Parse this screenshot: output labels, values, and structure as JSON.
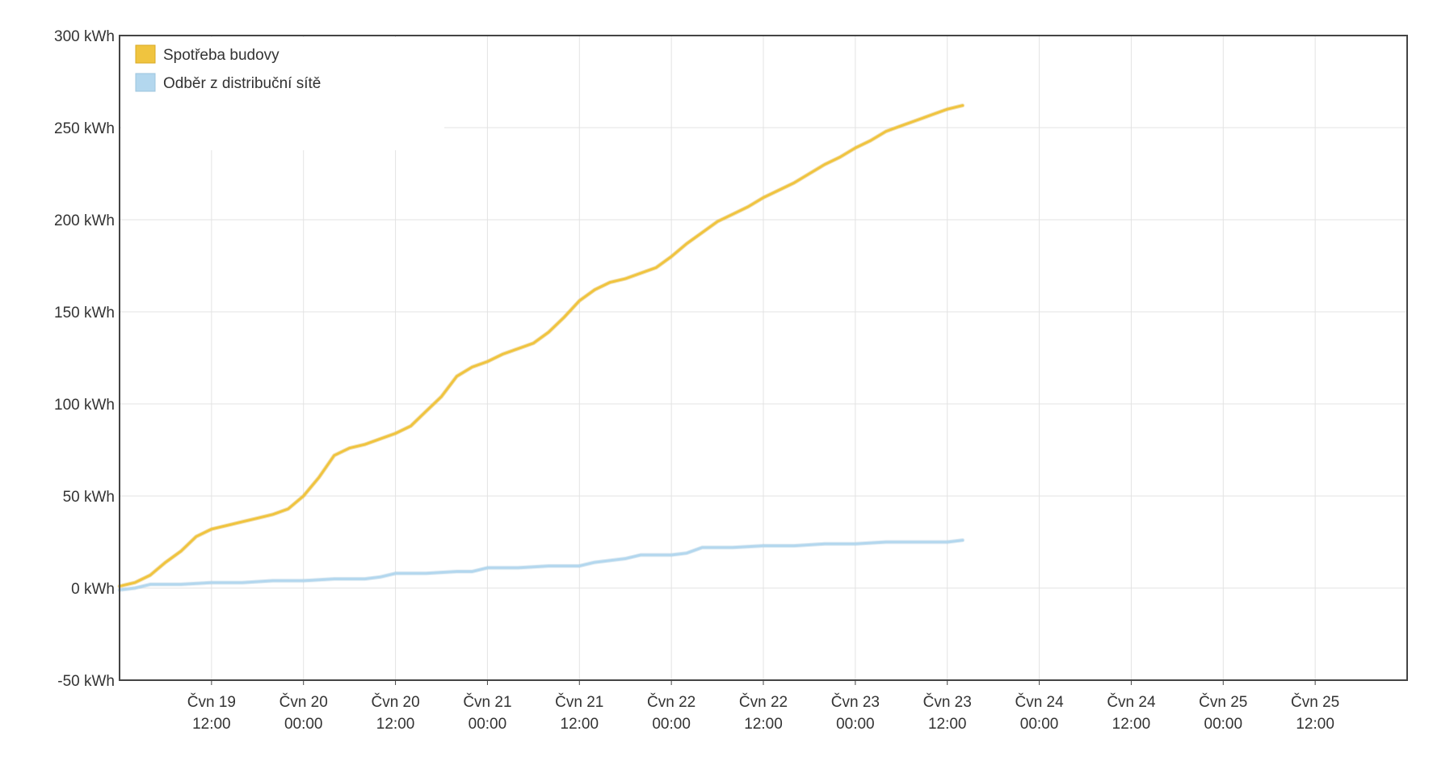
{
  "chart_data": {
    "type": "line",
    "title": "",
    "xlabel": "",
    "ylabel": "",
    "ylim": [
      -50,
      300
    ],
    "yticks": [
      {
        "value": -50,
        "label": "-50 kWh"
      },
      {
        "value": 0,
        "label": "0 kWh"
      },
      {
        "value": 50,
        "label": "50 kWh"
      },
      {
        "value": 100,
        "label": "100 kWh"
      },
      {
        "value": 150,
        "label": "150 kWh"
      },
      {
        "value": 200,
        "label": "200 kWh"
      },
      {
        "value": 250,
        "label": "250 kWh"
      },
      {
        "value": 300,
        "label": "300 kWh"
      }
    ],
    "x_unit": "hours",
    "xlim": [
      0,
      168
    ],
    "xticks": [
      {
        "value": 12,
        "line1": "Čvn 19",
        "line2": "12:00"
      },
      {
        "value": 24,
        "line1": "Čvn 20",
        "line2": "00:00"
      },
      {
        "value": 36,
        "line1": "Čvn 20",
        "line2": "12:00"
      },
      {
        "value": 48,
        "line1": "Čvn 21",
        "line2": "00:00"
      },
      {
        "value": 60,
        "line1": "Čvn 21",
        "line2": "12:00"
      },
      {
        "value": 72,
        "line1": "Čvn 22",
        "line2": "00:00"
      },
      {
        "value": 84,
        "line1": "Čvn 22",
        "line2": "12:00"
      },
      {
        "value": 96,
        "line1": "Čvn 23",
        "line2": "00:00"
      },
      {
        "value": 108,
        "line1": "Čvn 23",
        "line2": "12:00"
      },
      {
        "value": 120,
        "line1": "Čvn 24",
        "line2": "00:00"
      },
      {
        "value": 132,
        "line1": "Čvn 24",
        "line2": "12:00"
      },
      {
        "value": 144,
        "line1": "Čvn 25",
        "line2": "00:00"
      },
      {
        "value": 156,
        "line1": "Čvn 25",
        "line2": "12:00"
      }
    ],
    "grid": true,
    "legend_position": "top-left",
    "series": [
      {
        "name": "Spotřeba budovy",
        "color": "#f0c43f",
        "points": [
          [
            0,
            1
          ],
          [
            2,
            3
          ],
          [
            4,
            7
          ],
          [
            6,
            14
          ],
          [
            8,
            20
          ],
          [
            10,
            28
          ],
          [
            12,
            32
          ],
          [
            14,
            34
          ],
          [
            16,
            36
          ],
          [
            18,
            38
          ],
          [
            20,
            40
          ],
          [
            22,
            43
          ],
          [
            24,
            50
          ],
          [
            26,
            60
          ],
          [
            28,
            72
          ],
          [
            30,
            76
          ],
          [
            32,
            78
          ],
          [
            34,
            81
          ],
          [
            36,
            84
          ],
          [
            38,
            88
          ],
          [
            40,
            96
          ],
          [
            42,
            104
          ],
          [
            44,
            115
          ],
          [
            46,
            120
          ],
          [
            48,
            123
          ],
          [
            50,
            127
          ],
          [
            52,
            130
          ],
          [
            54,
            133
          ],
          [
            56,
            139
          ],
          [
            58,
            147
          ],
          [
            60,
            156
          ],
          [
            62,
            162
          ],
          [
            64,
            166
          ],
          [
            66,
            168
          ],
          [
            68,
            171
          ],
          [
            70,
            174
          ],
          [
            72,
            180
          ],
          [
            74,
            187
          ],
          [
            76,
            193
          ],
          [
            78,
            199
          ],
          [
            80,
            203
          ],
          [
            82,
            207
          ],
          [
            84,
            212
          ],
          [
            86,
            216
          ],
          [
            88,
            220
          ],
          [
            90,
            225
          ],
          [
            92,
            230
          ],
          [
            94,
            234
          ],
          [
            96,
            239
          ],
          [
            98,
            243
          ],
          [
            100,
            248
          ],
          [
            102,
            251
          ],
          [
            104,
            254
          ],
          [
            106,
            257
          ],
          [
            108,
            260
          ],
          [
            110,
            262
          ]
        ]
      },
      {
        "name": "Odběr z distribuční sítě",
        "color": "#b3d7ee",
        "points": [
          [
            0,
            -1
          ],
          [
            2,
            0
          ],
          [
            4,
            2
          ],
          [
            8,
            2
          ],
          [
            12,
            3
          ],
          [
            16,
            3
          ],
          [
            20,
            4
          ],
          [
            24,
            4
          ],
          [
            28,
            5
          ],
          [
            32,
            5
          ],
          [
            34,
            6
          ],
          [
            36,
            8
          ],
          [
            40,
            8
          ],
          [
            44,
            9
          ],
          [
            46,
            9
          ],
          [
            48,
            11
          ],
          [
            52,
            11
          ],
          [
            56,
            12
          ],
          [
            60,
            12
          ],
          [
            62,
            14
          ],
          [
            66,
            16
          ],
          [
            68,
            18
          ],
          [
            70,
            18
          ],
          [
            72,
            18
          ],
          [
            74,
            19
          ],
          [
            76,
            22
          ],
          [
            80,
            22
          ],
          [
            84,
            23
          ],
          [
            88,
            23
          ],
          [
            92,
            24
          ],
          [
            96,
            24
          ],
          [
            100,
            25
          ],
          [
            104,
            25
          ],
          [
            108,
            25
          ],
          [
            110,
            26
          ]
        ]
      }
    ]
  }
}
